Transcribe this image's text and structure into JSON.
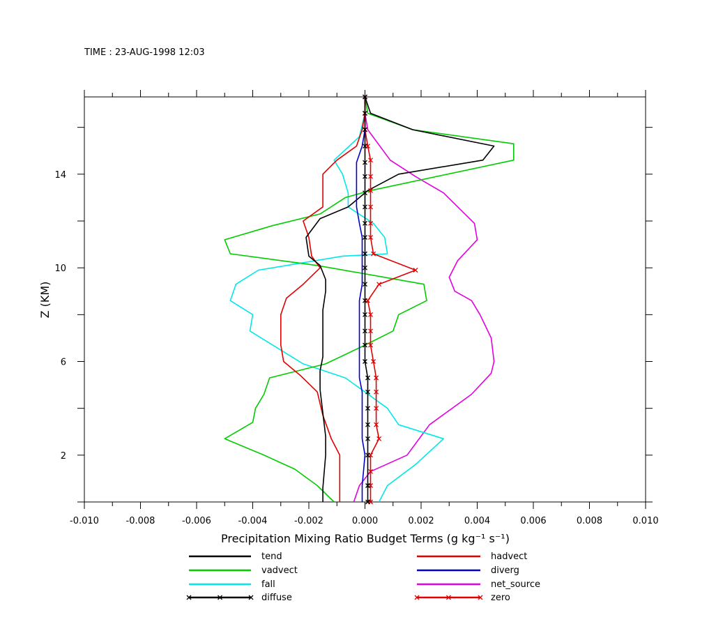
{
  "header": {
    "time_label": "TIME : 23-AUG-1998 12:03"
  },
  "chart_data": {
    "type": "line",
    "xlabel": "Precipitation Mixing Ratio Budget Terms (g kg⁻¹ s⁻¹)",
    "ylabel": "Z (KM)",
    "xlim": [
      -0.01,
      0.01
    ],
    "ylim": [
      0,
      17.3
    ],
    "x_ticks": [
      "-0.010",
      "-0.008",
      "-0.006",
      "-0.004",
      "-0.002",
      "0.000",
      "0.002",
      "0.004",
      "0.006",
      "0.008",
      "0.010"
    ],
    "y_ticks": [
      "2",
      "6",
      "10",
      "14"
    ],
    "grid": false,
    "legend_position": "bottom",
    "series": [
      {
        "name": "tend",
        "color": "#000000",
        "marker": false,
        "points": [
          [
            -0.0015,
            0
          ],
          [
            -0.0015,
            0.6
          ],
          [
            -0.0014,
            2
          ],
          [
            -0.0014,
            2.8
          ],
          [
            -0.0015,
            3.8
          ],
          [
            -0.0016,
            4.8
          ],
          [
            -0.0016,
            5.6
          ],
          [
            -0.0015,
            6.2
          ],
          [
            -0.0015,
            7
          ],
          [
            -0.0015,
            8.2
          ],
          [
            -0.0014,
            9
          ],
          [
            -0.0014,
            9.5
          ],
          [
            -0.0016,
            10.1
          ],
          [
            -0.002,
            10.5
          ],
          [
            -0.0021,
            11.3
          ],
          [
            -0.0016,
            12.1
          ],
          [
            -0.0006,
            12.6
          ],
          [
            -0.0002,
            13
          ],
          [
            0.0001,
            13.3
          ],
          [
            0.0012,
            14
          ],
          [
            0.0042,
            14.6
          ],
          [
            0.0046,
            15.2
          ],
          [
            0.0017,
            15.9
          ],
          [
            0.0002,
            16.6
          ],
          [
            0,
            17.3
          ]
        ]
      },
      {
        "name": "vadvect",
        "color": "#00cc00",
        "marker": false,
        "points": [
          [
            -0.0011,
            0
          ],
          [
            -0.0017,
            0.7
          ],
          [
            -0.0025,
            1.4
          ],
          [
            -0.0036,
            2
          ],
          [
            -0.005,
            2.7
          ],
          [
            -0.004,
            3.4
          ],
          [
            -0.0039,
            4
          ],
          [
            -0.0036,
            4.6
          ],
          [
            -0.0034,
            5.3
          ],
          [
            -0.0014,
            5.9
          ],
          [
            0,
            6.7
          ],
          [
            0.001,
            7.3
          ],
          [
            0.0012,
            8
          ],
          [
            0.0022,
            8.6
          ],
          [
            0.0021,
            9.3
          ],
          [
            -0.0017,
            10.1
          ],
          [
            -0.0048,
            10.6
          ],
          [
            -0.005,
            11.2
          ],
          [
            -0.0033,
            11.8
          ],
          [
            -0.0016,
            12.3
          ],
          [
            -0.0007,
            13
          ],
          [
            0.0002,
            13.3
          ],
          [
            0.0053,
            14.6
          ],
          [
            0.0053,
            15.3
          ],
          [
            0.0017,
            15.9
          ],
          [
            0.0001,
            16.6
          ],
          [
            0,
            17.3
          ]
        ]
      },
      {
        "name": "fall",
        "color": "#00e8e8",
        "marker": false,
        "points": [
          [
            0.0005,
            0
          ],
          [
            0.0008,
            0.7
          ],
          [
            0.0018,
            1.6
          ],
          [
            0.0028,
            2.7
          ],
          [
            0.0012,
            3.3
          ],
          [
            0.0008,
            4
          ],
          [
            0,
            4.7
          ],
          [
            -0.0007,
            5.3
          ],
          [
            -0.0022,
            5.9
          ],
          [
            -0.0041,
            7.3
          ],
          [
            -0.004,
            8
          ],
          [
            -0.0048,
            8.6
          ],
          [
            -0.0046,
            9.3
          ],
          [
            -0.0038,
            9.9
          ],
          [
            -0.0008,
            10.5
          ],
          [
            0.0008,
            10.6
          ],
          [
            0.0007,
            11.3
          ],
          [
            0.0003,
            11.9
          ],
          [
            -0.0006,
            12.6
          ],
          [
            -0.0006,
            13.2
          ],
          [
            -0.0008,
            14
          ],
          [
            -0.0011,
            14.6
          ],
          [
            -0.0002,
            15.6
          ],
          [
            0,
            16.6
          ],
          [
            0,
            17.3
          ]
        ]
      },
      {
        "name": "diffuse",
        "color": "#000000",
        "marker": true,
        "points": [
          [
            0.0001,
            0
          ],
          [
            0.0001,
            0.7
          ],
          [
            0.0001,
            2
          ],
          [
            0.0001,
            2.7
          ],
          [
            0.0001,
            3.3
          ],
          [
            0.0001,
            4
          ],
          [
            0.0001,
            4.7
          ],
          [
            0.0001,
            5.3
          ],
          [
            0,
            6
          ],
          [
            0,
            6.7
          ],
          [
            0,
            7.3
          ],
          [
            0,
            8
          ],
          [
            0,
            8.6
          ],
          [
            0,
            9.3
          ],
          [
            0,
            10
          ],
          [
            0,
            10.6
          ],
          [
            0,
            11.3
          ],
          [
            0,
            11.9
          ],
          [
            0,
            12.6
          ],
          [
            0,
            13.2
          ],
          [
            0,
            13.9
          ],
          [
            0,
            14.5
          ],
          [
            0,
            15.2
          ],
          [
            0,
            15.9
          ],
          [
            0,
            16.6
          ],
          [
            0,
            17.3
          ]
        ]
      },
      {
        "name": "hadvect",
        "color": "#e00000",
        "marker": false,
        "points": [
          [
            -0.0009,
            0
          ],
          [
            -0.0009,
            1
          ],
          [
            -0.0009,
            2
          ],
          [
            -0.0012,
            2.7
          ],
          [
            -0.0015,
            3.7
          ],
          [
            -0.0017,
            4.7
          ],
          [
            -0.0023,
            5.4
          ],
          [
            -0.0029,
            6
          ],
          [
            -0.003,
            6.7
          ],
          [
            -0.003,
            7.3
          ],
          [
            -0.003,
            8
          ],
          [
            -0.0028,
            8.7
          ],
          [
            -0.0022,
            9.3
          ],
          [
            -0.0016,
            10
          ],
          [
            -0.0019,
            10.5
          ],
          [
            -0.002,
            11.3
          ],
          [
            -0.0022,
            12
          ],
          [
            -0.0015,
            12.6
          ],
          [
            -0.0015,
            13.2
          ],
          [
            -0.0015,
            14
          ],
          [
            -0.001,
            14.6
          ],
          [
            -0.0003,
            15.2
          ],
          [
            -0.0001,
            15.9
          ],
          [
            0,
            16.6
          ],
          [
            0,
            17.3
          ]
        ]
      },
      {
        "name": "diverg",
        "color": "#0000cc",
        "marker": false,
        "points": [
          [
            -0.0001,
            0
          ],
          [
            -0.0001,
            0.7
          ],
          [
            0,
            2
          ],
          [
            -0.0001,
            2.7
          ],
          [
            -0.0001,
            3.3
          ],
          [
            -0.0001,
            4
          ],
          [
            -0.0001,
            4.7
          ],
          [
            -0.0002,
            5.3
          ],
          [
            -0.0002,
            6
          ],
          [
            -0.0002,
            6.7
          ],
          [
            -0.0002,
            7.3
          ],
          [
            -0.0002,
            8
          ],
          [
            -0.0002,
            8.6
          ],
          [
            -0.0001,
            9.3
          ],
          [
            -0.0001,
            10
          ],
          [
            -0.0001,
            10.6
          ],
          [
            -0.0001,
            11.3
          ],
          [
            -0.0002,
            11.9
          ],
          [
            -0.0003,
            12.6
          ],
          [
            -0.0003,
            13.2
          ],
          [
            -0.0003,
            13.9
          ],
          [
            -0.0003,
            14.5
          ],
          [
            -0.0001,
            15.2
          ],
          [
            0,
            15.9
          ],
          [
            0,
            16.6
          ],
          [
            0,
            17.3
          ]
        ]
      },
      {
        "name": "net_source",
        "color": "#e000e0",
        "marker": false,
        "points": [
          [
            -0.0004,
            0
          ],
          [
            -0.0002,
            0.7
          ],
          [
            0.0002,
            1.3
          ],
          [
            0.0015,
            2
          ],
          [
            0.0023,
            3.3
          ],
          [
            0.0038,
            4.6
          ],
          [
            0.0045,
            5.5
          ],
          [
            0.0046,
            6
          ],
          [
            0.0045,
            7
          ],
          [
            0.0041,
            8
          ],
          [
            0.0038,
            8.6
          ],
          [
            0.0032,
            9
          ],
          [
            0.003,
            9.6
          ],
          [
            0.0033,
            10.3
          ],
          [
            0.004,
            11.2
          ],
          [
            0.0039,
            11.9
          ],
          [
            0.0028,
            13.2
          ],
          [
            0.0018,
            13.9
          ],
          [
            0.0009,
            14.6
          ],
          [
            0.0001,
            15.9
          ],
          [
            0,
            16.6
          ],
          [
            0,
            17.3
          ]
        ]
      },
      {
        "name": "zero",
        "color": "#e00000",
        "marker": true,
        "points": [
          [
            0.0002,
            0
          ],
          [
            0.0002,
            0.7
          ],
          [
            0.0002,
            1.3
          ],
          [
            0.0002,
            2
          ],
          [
            0.0005,
            2.7
          ],
          [
            0.0004,
            3.3
          ],
          [
            0.0004,
            4
          ],
          [
            0.0004,
            4.7
          ],
          [
            0.0004,
            5.3
          ],
          [
            0.0003,
            6
          ],
          [
            0.0002,
            6.7
          ],
          [
            0.0002,
            7.3
          ],
          [
            0.0002,
            8
          ],
          [
            0.0001,
            8.6
          ],
          [
            0.0005,
            9.3
          ],
          [
            0.0018,
            9.9
          ],
          [
            0.0003,
            10.6
          ],
          [
            0.0002,
            11.3
          ],
          [
            0.0002,
            11.9
          ],
          [
            0.0002,
            12.6
          ],
          [
            0.0002,
            13.3
          ],
          [
            0.0002,
            13.9
          ],
          [
            0.0002,
            14.6
          ],
          [
            0.0001,
            15.2
          ],
          [
            0,
            15.9
          ],
          [
            0,
            16.6
          ],
          [
            0,
            17.3
          ]
        ]
      }
    ]
  },
  "legend": {
    "left": [
      "tend",
      "vadvect",
      "fall",
      "diffuse"
    ],
    "right": [
      "hadvect",
      "diverg",
      "net_source",
      "zero"
    ]
  }
}
